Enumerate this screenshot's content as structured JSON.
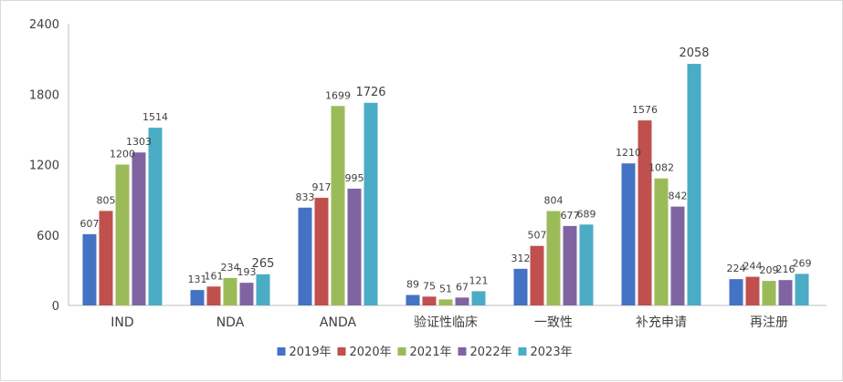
{
  "chart_data": {
    "type": "bar",
    "title": "",
    "xlabel": "",
    "ylabel": "",
    "ylim": [
      0,
      2400
    ],
    "yticks": [
      0,
      600,
      1200,
      1800,
      2400
    ],
    "grid": false,
    "legend_position": "bottom",
    "categories": [
      "IND",
      "NDA",
      "ANDA",
      "验证性临床",
      "一致性",
      "补充申请",
      "再注册"
    ],
    "series": [
      {
        "name": "2019年",
        "color": "#4472c4",
        "values": [
          607,
          131,
          833,
          89,
          312,
          1210,
          224
        ]
      },
      {
        "name": "2020年",
        "color": "#c0504d",
        "values": [
          805,
          161,
          917,
          75,
          507,
          1576,
          244
        ]
      },
      {
        "name": "2021年",
        "color": "#9bbb59",
        "values": [
          1200,
          234,
          1699,
          51,
          804,
          1082,
          209
        ]
      },
      {
        "name": "2022年",
        "color": "#8064a2",
        "values": [
          1303,
          193,
          995,
          67,
          677,
          842,
          216
        ]
      },
      {
        "name": "2023年",
        "color": "#4bacc6",
        "values": [
          1514,
          265,
          1726,
          121,
          689,
          2058,
          269
        ]
      }
    ]
  }
}
